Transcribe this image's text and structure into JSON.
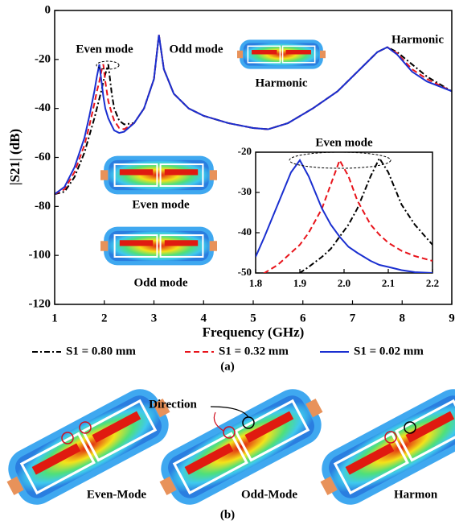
{
  "chart_data": {
    "type": "line",
    "xlabel": "Frequency (GHz)",
    "ylabel": "|S21| (dB)",
    "xlim": [
      1,
      9
    ],
    "xticks": [
      1,
      2,
      3,
      4,
      5,
      6,
      7,
      8,
      9
    ],
    "ylim": [
      -120,
      0
    ],
    "yticks": [
      0,
      -20,
      -40,
      -60,
      -80,
      -100,
      -120
    ],
    "x": [
      1,
      1.2,
      1.4,
      1.6,
      1.7,
      1.8,
      1.85,
      1.9,
      1.95,
      1.98,
      2.02,
      2.08,
      2.15,
      2.2,
      2.3,
      2.4,
      2.6,
      2.8,
      3.0,
      3.1,
      3.2,
      3.4,
      3.7,
      4,
      4.5,
      5,
      5.3,
      5.7,
      6.2,
      6.7,
      7.0,
      7.3,
      7.5,
      7.7,
      7.9,
      8.2,
      8.5,
      9
    ],
    "series": [
      {
        "name": "S1 = 0.80 mm",
        "color": "#000000",
        "dash": "7 3 2 3",
        "values": [
          -75,
          -74,
          -68,
          -58,
          -51,
          -44,
          -40,
          -36,
          -32,
          -29,
          -26,
          -22,
          -34,
          -40,
          -45,
          -46.5,
          -46,
          -40,
          -28,
          -10,
          -24,
          -34,
          -40,
          -43,
          -46,
          -48,
          -48.5,
          -46,
          -40,
          -33,
          -27,
          -21,
          -17,
          -15,
          -17,
          -22,
          -27,
          -33
        ]
      },
      {
        "name": "S1 = 0.32 mm",
        "color": "#e8141b",
        "dash": "7 4",
        "values": [
          -75,
          -73,
          -66,
          -55,
          -47,
          -38,
          -33,
          -29,
          -24,
          -22,
          -29,
          -37,
          -42,
          -45,
          -48,
          -48.5,
          -46,
          -40,
          -28,
          -10,
          -24,
          -34,
          -40,
          -43,
          -46,
          -48,
          -48.5,
          -46,
          -40,
          -33,
          -27,
          -21,
          -17,
          -15,
          -17.5,
          -24,
          -28,
          -33
        ]
      },
      {
        "name": "S1 = 0.02 mm",
        "color": "#1a2fd0",
        "dash": "none",
        "values": [
          -75,
          -72,
          -64,
          -52,
          -43,
          -33,
          -27,
          -22,
          -30,
          -35,
          -40,
          -44,
          -47,
          -49,
          -50,
          -49.5,
          -46,
          -40,
          -28,
          -10,
          -24,
          -34,
          -40,
          -43,
          -46,
          -48,
          -48.5,
          -46,
          -40,
          -33,
          -27,
          -21,
          -17,
          -15,
          -18,
          -25,
          -29,
          -33
        ]
      }
    ],
    "annotations": [
      "Even mode",
      "Odd mode",
      "Harmonic",
      "Harmonic",
      "Even mode",
      "Odd mode"
    ],
    "inset": {
      "type": "line",
      "title": "Even mode",
      "xlim": [
        1.8,
        2.2
      ],
      "xticks": [
        1.8,
        1.9,
        {
          "value": 2.0,
          "label": "2.0"
        },
        2.1,
        2.2
      ],
      "ylim": [
        -50,
        -20
      ],
      "yticks": [
        -20,
        -30,
        -40,
        -50
      ],
      "x": [
        1.8,
        1.82,
        1.85,
        1.88,
        1.9,
        1.92,
        1.95,
        1.97,
        1.99,
        2.01,
        2.03,
        2.06,
        2.08,
        2.1,
        2.13,
        2.16,
        2.2
      ],
      "series": [
        {
          "color": "#000000",
          "dash": "7 3 2 3",
          "values": [
            -55,
            -54,
            -53,
            -51.5,
            -50,
            -48.5,
            -46,
            -44,
            -41,
            -38,
            -34,
            -26,
            -21.5,
            -25,
            -33,
            -38,
            -43
          ]
        },
        {
          "color": "#e8141b",
          "dash": "7 4",
          "values": [
            -51,
            -50,
            -48,
            -45,
            -43,
            -40,
            -34,
            -28,
            -22,
            -26,
            -32,
            -38,
            -40.5,
            -42.5,
            -44.5,
            -45.8,
            -47
          ]
        },
        {
          "color": "#1a2fd0",
          "dash": "none",
          "values": [
            -46,
            -41,
            -33,
            -25,
            -22,
            -26,
            -34,
            -38,
            -41,
            -43.5,
            -45,
            -47,
            -48,
            -48.5,
            -49.3,
            -49.8,
            -50
          ]
        }
      ]
    }
  },
  "figure": {
    "panel_a": "(a)",
    "panel_b": "(b)",
    "direction": "Direction",
    "modes": [
      "Even-Mode",
      "Odd-Mode",
      "Harmon"
    ]
  }
}
